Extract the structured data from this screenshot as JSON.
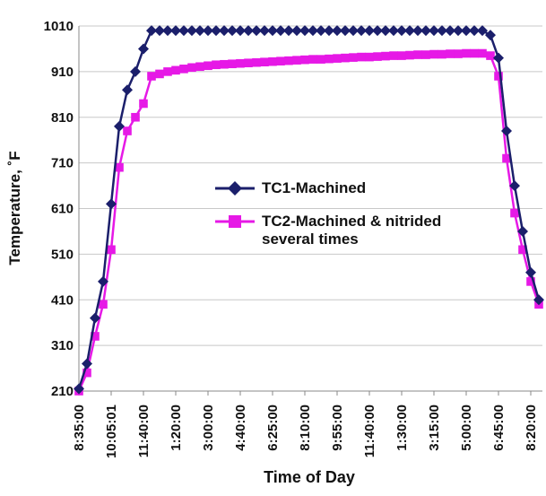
{
  "chart_data": {
    "type": "line",
    "x_label": "Time of Day",
    "y_label": "Temperature, ˚F",
    "categories": [
      "8:35:00",
      null,
      null,
      null,
      "10:05:01",
      null,
      null,
      null,
      "11:40:00",
      null,
      null,
      null,
      "1:20:00",
      null,
      null,
      null,
      "3:00:00",
      null,
      null,
      null,
      "4:40:00",
      null,
      null,
      null,
      "6:25:00",
      null,
      null,
      null,
      "8:10:00",
      null,
      null,
      null,
      "9:55:00",
      null,
      null,
      null,
      "11:40:00",
      null,
      null,
      null,
      "1:30:00",
      null,
      null,
      null,
      "3:15:00",
      null,
      null,
      null,
      "5:00:00",
      null,
      null,
      null,
      "6:45:00",
      null,
      null,
      null,
      "8:20:00",
      null
    ],
    "series": [
      {
        "name": "TC1-Machined",
        "color": "#1b1f6b",
        "marker": "diamond",
        "values": [
          215,
          270,
          370,
          450,
          620,
          790,
          870,
          910,
          960,
          1000,
          1000,
          1000,
          1000,
          1000,
          1000,
          1000,
          1000,
          1000,
          1000,
          1000,
          1000,
          1000,
          1000,
          1000,
          1000,
          1000,
          1000,
          1000,
          1000,
          1000,
          1000,
          1000,
          1000,
          1000,
          1000,
          1000,
          1000,
          1000,
          1000,
          1000,
          1000,
          1000,
          1000,
          1000,
          1000,
          1000,
          1000,
          1000,
          1000,
          1000,
          1000,
          990,
          940,
          780,
          660,
          560,
          470,
          410
        ]
      },
      {
        "name": "TC2-Machined & nitrided several times",
        "color": "#e619e6",
        "marker": "square",
        "values": [
          210,
          250,
          330,
          400,
          520,
          700,
          780,
          810,
          840,
          900,
          905,
          910,
          913,
          916,
          919,
          921,
          923,
          925,
          926,
          927,
          928,
          929,
          930,
          931,
          932,
          933,
          934,
          935,
          936,
          937,
          937,
          938,
          939,
          940,
          941,
          942,
          942,
          943,
          944,
          945,
          945,
          946,
          947,
          947,
          948,
          948,
          949,
          949,
          950,
          950,
          950,
          945,
          900,
          720,
          600,
          520,
          450,
          400
        ]
      }
    ],
    "ylim": [
      210,
      1010
    ],
    "yticks": [
      210,
      310,
      410,
      510,
      610,
      710,
      810,
      910,
      1010
    ],
    "grid": true
  }
}
